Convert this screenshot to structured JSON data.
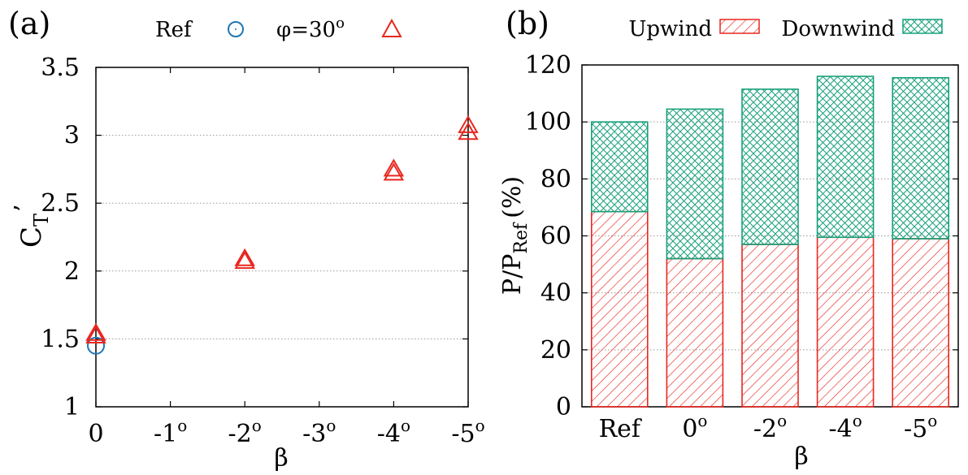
{
  "chart_data": [
    {
      "type": "scatter",
      "panel_label": "(a)",
      "xlabel": "β",
      "ylabel_main": "C",
      "ylabel_sub": "T",
      "ylabel_mark": "’",
      "ylim": [
        1,
        3.5
      ],
      "y_ticks": [
        "1",
        "1.5",
        "2",
        "2.5",
        "3",
        "3.5"
      ],
      "x_ticks": [
        {
          "base": "0",
          "sup": ""
        },
        {
          "base": "-1",
          "sup": "o"
        },
        {
          "base": "-2",
          "sup": "o"
        },
        {
          "base": "-3",
          "sup": "o"
        },
        {
          "base": "-4",
          "sup": "o"
        },
        {
          "base": "-5",
          "sup": "o"
        }
      ],
      "legend": [
        {
          "label": "Ref",
          "marker": "circle",
          "color": "#1f77b4"
        },
        {
          "label_base": "φ=30",
          "label_sup": "o",
          "marker": "triangle",
          "color": "#e8271f"
        }
      ],
      "series": [
        {
          "name": "Ref",
          "marker": "circle",
          "color": "#1f77b4",
          "points": [
            {
              "beta": 0,
              "value": 1.45
            }
          ]
        },
        {
          "name": "φ=30°",
          "marker": "triangle",
          "color": "#e8271f",
          "points": [
            {
              "beta": 0,
              "value": 1.52
            },
            {
              "beta": 0,
              "value": 1.54
            },
            {
              "beta": -2,
              "value": 2.07
            },
            {
              "beta": -2,
              "value": 2.09
            },
            {
              "beta": -4,
              "value": 2.72
            },
            {
              "beta": -4,
              "value": 2.75
            },
            {
              "beta": -5,
              "value": 3.02
            },
            {
              "beta": -5,
              "value": 3.07
            }
          ]
        }
      ]
    },
    {
      "type": "bar",
      "stacked": true,
      "panel_label": "(b)",
      "xlabel": "β",
      "ylabel_main": "P/P",
      "ylabel_sub": "Ref",
      "ylabel_unit": "(%)",
      "ylim": [
        0,
        120
      ],
      "y_ticks": [
        "0",
        "20",
        "40",
        "60",
        "80",
        "100",
        "120"
      ],
      "categories": [
        {
          "base": "Ref",
          "sup": ""
        },
        {
          "base": "0",
          "sup": "o"
        },
        {
          "base": "-2",
          "sup": "o"
        },
        {
          "base": "-4",
          "sup": "o"
        },
        {
          "base": "-5",
          "sup": "o"
        }
      ],
      "series": [
        {
          "name": "Upwind",
          "color": "#e8271f",
          "pattern": "diagonal-hatch",
          "values": [
            68.5,
            52,
            57,
            59.5,
            59
          ]
        },
        {
          "name": "Downwind",
          "color": "#17a07a",
          "pattern": "cross-hatch",
          "values": [
            31.5,
            52.5,
            54.5,
            56.5,
            56.5
          ]
        }
      ],
      "legend": [
        {
          "label": "Upwind",
          "color": "#e8271f",
          "pattern": "diagonal-hatch"
        },
        {
          "label": "Downwind",
          "color": "#17a07a",
          "pattern": "cross-hatch"
        }
      ]
    }
  ]
}
